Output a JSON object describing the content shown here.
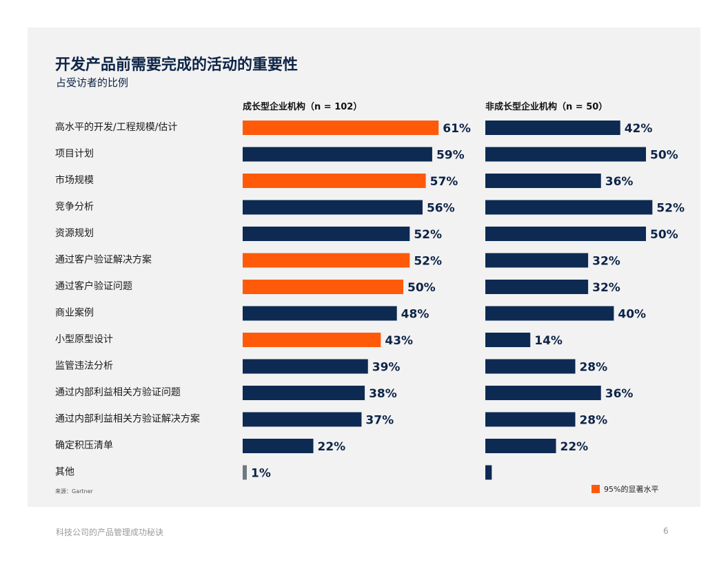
{
  "page": {
    "title": "开发产品前需要完成的活动的重要性",
    "subtitle": "占受访者的比例",
    "source": "来源：Gartner",
    "footer_text": "科技公司的产品管理成功秘诀",
    "page_number": "6",
    "legend_label": "95%的显著水平"
  },
  "colors": {
    "significant": "#ff5a0a",
    "normal": "#0d2a52",
    "other": "#6f7a80"
  },
  "chart_data": {
    "type": "bar",
    "orientation": "horizontal",
    "title": "开发产品前需要完成的活动的重要性",
    "subtitle": "占受访者的比例",
    "xlim": [
      0,
      100
    ],
    "grid": false,
    "legend_position": "bottom-right",
    "categories": [
      "高水平的开发/工程规模/估计",
      "项目计划",
      "市场规模",
      "竞争分析",
      "资源规划",
      "通过客户验证解决方案",
      "通过客户验证问题",
      "商业案例",
      "小型原型设计",
      "监管违法分析",
      "通过内部利益相关方验证问题",
      "通过内部利益相关方验证解决方案",
      "确定积压清单",
      "其他"
    ],
    "series": [
      {
        "name": "成长型企业机构（n = 102）",
        "values": [
          61,
          59,
          57,
          56,
          52,
          52,
          50,
          48,
          43,
          39,
          38,
          37,
          22,
          1
        ],
        "labels": [
          "61%",
          "59%",
          "57%",
          "56%",
          "52%",
          "52%",
          "50%",
          "48%",
          "43%",
          "39%",
          "38%",
          "37%",
          "22%",
          "1%"
        ],
        "significant": [
          true,
          false,
          true,
          false,
          false,
          true,
          true,
          false,
          true,
          false,
          false,
          false,
          false,
          false
        ]
      },
      {
        "name": "非成长型企业机构（n = 50）",
        "values": [
          42,
          50,
          36,
          52,
          50,
          32,
          32,
          40,
          14,
          28,
          36,
          28,
          22,
          2
        ],
        "labels": [
          "42%",
          "50%",
          "36%",
          "52%",
          "50%",
          "32%",
          "32%",
          "40%",
          "14%",
          "28%",
          "36%",
          "28%",
          "22%",
          ""
        ],
        "significant": [
          false,
          false,
          false,
          false,
          false,
          false,
          false,
          false,
          false,
          false,
          false,
          false,
          false,
          false
        ]
      }
    ]
  }
}
